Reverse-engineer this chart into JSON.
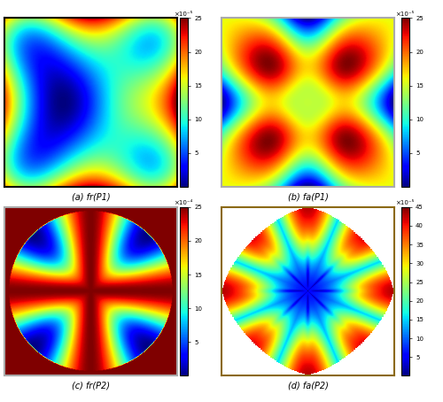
{
  "title_a": "(a) fr(P1)",
  "title_b": "(b) fa(P1)",
  "title_c": "(c) fr(P2)",
  "title_d": "(d) fa(P2)",
  "cbar_a_label": "×10⁻⁵",
  "cbar_a_ticks": [
    5,
    10,
    15,
    20,
    25
  ],
  "cbar_b_label": "×10⁻⁵",
  "cbar_b_ticks": [
    5,
    10,
    15,
    20,
    25
  ],
  "cbar_c_label": "×10⁻⁴",
  "cbar_c_ticks": [
    5,
    10,
    15,
    20,
    25
  ],
  "cbar_d_label": "×10⁻⁵",
  "cbar_d_ticks": [
    5,
    10,
    15,
    20,
    25,
    30,
    35,
    40,
    45
  ],
  "figsize": [
    5.0,
    4.54
  ],
  "dpi": 100,
  "background_color": "#ffffff",
  "colormap": "jet"
}
